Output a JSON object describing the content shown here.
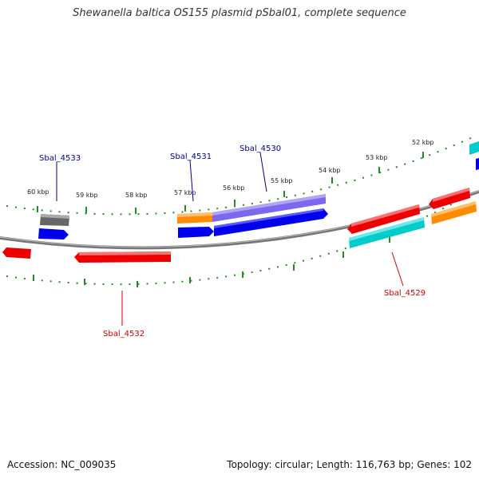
{
  "title": "Shewanella baltica OS155 plasmid pSbal01, complete sequence",
  "footer": {
    "accession": "Accession: NC_009035",
    "summary": "Topology: circular; Length: 116,763 bp; Genes: 102"
  },
  "colors": {
    "forward_label": "#00008b",
    "reverse_label": "#cc0000",
    "tick": "#228b22",
    "backbone": "#888888",
    "feature_blue": "#0000ee",
    "feature_red": "#ee0000",
    "feature_orange": "#ff8c00",
    "feature_cyan": "#00cccc",
    "feature_purple": "#7b68ee",
    "feature_gray": "#666666"
  },
  "scale_labels": [
    "60 kbp",
    "59 kbp",
    "58 kbp",
    "57 kbp",
    "56 kbp",
    "55 kbp",
    "54 kbp",
    "53 kbp",
    "52 kbp"
  ],
  "gene_labels": {
    "sbal_4533": "Sbal_4533",
    "sbal_4531": "Sbal_4531",
    "sbal_4530": "Sbal_4530",
    "sbal_4532": "Sbal_4532",
    "sbal_4529": "Sbal_4529"
  }
}
